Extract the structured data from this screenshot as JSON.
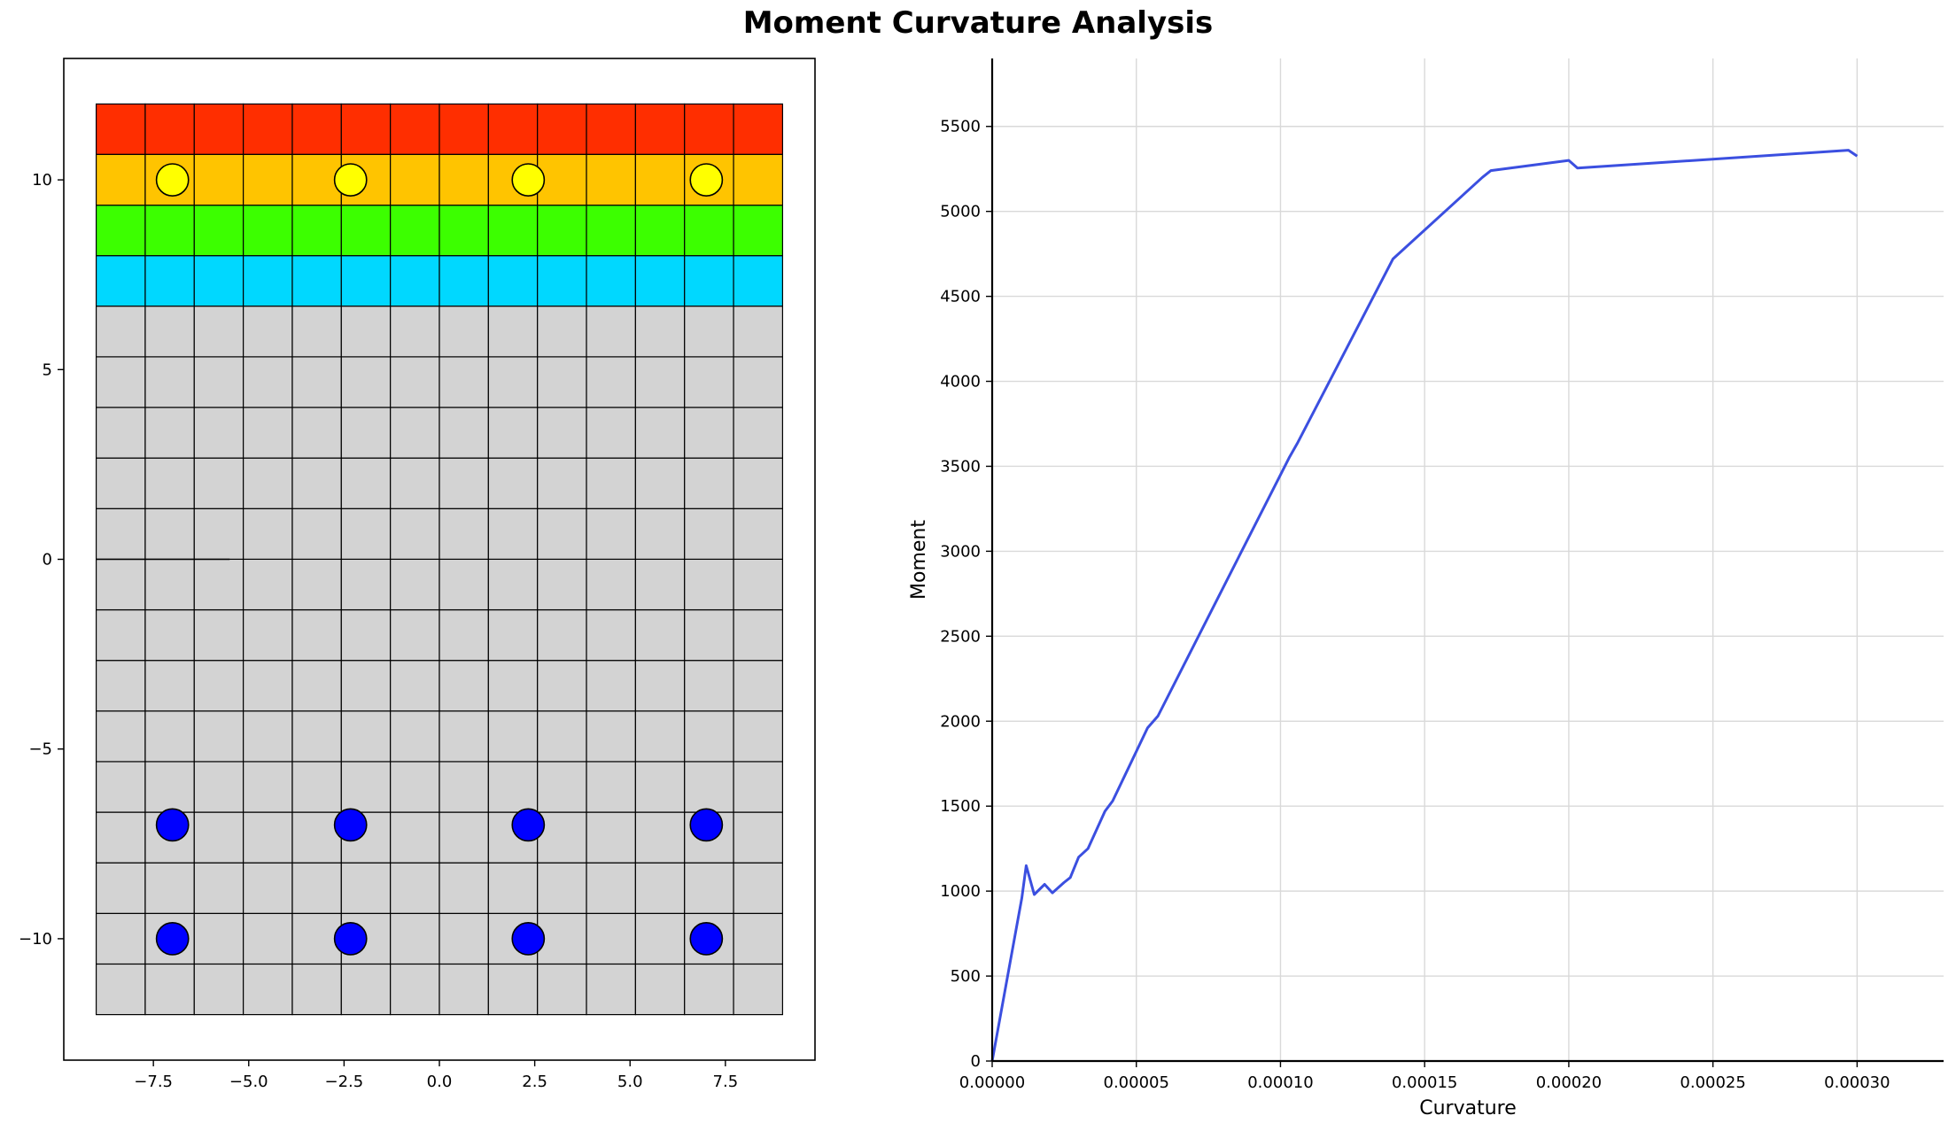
{
  "title": "Moment Curvature Analysis",
  "chart_data": [
    {
      "type": "section",
      "subtitle": "",
      "xlim": [
        -9.85,
        9.85
      ],
      "ylim": [
        -13.2,
        13.2
      ],
      "xticks": [
        -7.5,
        -5.0,
        -2.5,
        0.0,
        2.5,
        5.0,
        7.5
      ],
      "xtick_labels": [
        "−7.5",
        "−5.0",
        "−2.5",
        "0.0",
        "2.5",
        "5.0",
        "7.5"
      ],
      "yticks": [
        -10,
        -5,
        0,
        5,
        10
      ],
      "ytick_labels": [
        "−10",
        "−5",
        "0",
        "5",
        "10"
      ],
      "section_width": [
        -9,
        9
      ],
      "section_height": [
        -12,
        12
      ],
      "cell_columns": 14,
      "layers": [
        {
          "name": "red",
          "y0": 10.67,
          "y1": 12.0,
          "color": "#ff2e00"
        },
        {
          "name": "orange",
          "y0": 9.33,
          "y1": 10.67,
          "color": "#ffc400"
        },
        {
          "name": "green",
          "y0": 8.0,
          "y1": 9.33,
          "color": "#3cff00"
        },
        {
          "name": "cyan",
          "y0": 6.67,
          "y1": 8.0,
          "color": "#00d8ff"
        },
        {
          "name": "grey",
          "y0": -12.0,
          "y1": 6.67,
          "color": "#d3d3d3",
          "rows": 14
        }
      ],
      "bars": [
        {
          "x": -7,
          "y": 10,
          "color": "#ffff00"
        },
        {
          "x": -2.33,
          "y": 10,
          "color": "#ffff00"
        },
        {
          "x": 2.33,
          "y": 10,
          "color": "#ffff00"
        },
        {
          "x": 7,
          "y": 10,
          "color": "#ffff00"
        },
        {
          "x": -7,
          "y": -7,
          "color": "#0000ff"
        },
        {
          "x": -2.33,
          "y": -7,
          "color": "#0000ff"
        },
        {
          "x": 2.33,
          "y": -7,
          "color": "#0000ff"
        },
        {
          "x": 7,
          "y": -7,
          "color": "#0000ff"
        },
        {
          "x": -7,
          "y": -10,
          "color": "#0000ff"
        },
        {
          "x": -2.33,
          "y": -10,
          "color": "#0000ff"
        },
        {
          "x": 2.33,
          "y": -10,
          "color": "#0000ff"
        },
        {
          "x": 7,
          "y": -10,
          "color": "#0000ff"
        }
      ],
      "bar_radius": 0.42,
      "neutral_axis": {
        "x0": -9.0,
        "x1": -5.5,
        "y": 0
      }
    },
    {
      "type": "line",
      "xlabel": "Curvature",
      "ylabel": "Moment",
      "xlim": [
        0,
        0.00033
      ],
      "ylim": [
        0,
        5900
      ],
      "grid": true,
      "line_color": "#3b4fe0",
      "xticks": [
        0,
        5e-05,
        0.0001,
        0.00015,
        0.0002,
        0.00025,
        0.0003
      ],
      "xtick_labels": [
        "0.00000",
        "0.00005",
        "0.00010",
        "0.00015",
        "0.00020",
        "0.00025",
        "0.00030"
      ],
      "yticks": [
        0,
        500,
        1000,
        1500,
        2000,
        2500,
        3000,
        3500,
        4000,
        4500,
        5000,
        5500
      ],
      "ytick_labels": [
        "0",
        "500",
        "1000",
        "1500",
        "2000",
        "2500",
        "3000",
        "3500",
        "4000",
        "4500",
        "5000",
        "5500"
      ],
      "x": [
        0,
        1.03e-05,
        1.18e-05,
        1.46e-05,
        1.82e-05,
        2.09e-05,
        2.49e-05,
        2.71e-05,
        3e-05,
        3.32e-05,
        3.91e-05,
        4.18e-05,
        5.39e-05,
        5.75e-05,
        0.000103,
        0.000106,
        0.000139,
        0.00017,
        0.000173,
        0.0002,
        0.000203,
        0.000297,
        0.0003
      ],
      "y": [
        0,
        960,
        1150,
        980,
        1040,
        990,
        1050,
        1080,
        1200,
        1250,
        1470,
        1530,
        1960,
        2030,
        3550,
        3640,
        4720,
        5200,
        5240,
        5300,
        5255,
        5360,
        5325
      ]
    }
  ]
}
